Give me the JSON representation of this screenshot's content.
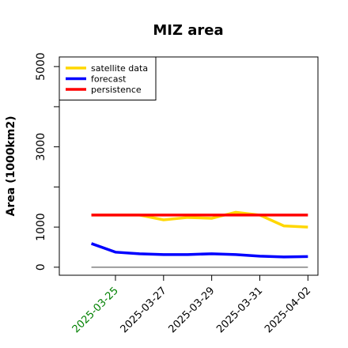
{
  "chart_data": {
    "type": "line",
    "title": "MIZ area",
    "ylabel": "Area (1000km2)",
    "x": [
      "2025-03-24",
      "2025-03-25",
      "2025-03-26",
      "2025-03-27",
      "2025-03-28",
      "2025-03-29",
      "2025-03-30",
      "2025-03-31",
      "2025-04-01",
      "2025-04-02"
    ],
    "series": [
      {
        "name": "satellite data",
        "color": "#ffd700",
        "values": [
          1300,
          1300,
          1300,
          1180,
          1240,
          1220,
          1370,
          1300,
          1030,
          1000
        ]
      },
      {
        "name": "forecast",
        "color": "#0000ff",
        "values": [
          590,
          375,
          335,
          315,
          315,
          335,
          315,
          275,
          255,
          265
        ]
      },
      {
        "name": "persistence",
        "color": "#ff0000",
        "values": [
          1300,
          1300,
          1300,
          1300,
          1300,
          1300,
          1300,
          1300,
          1300,
          1300
        ]
      },
      {
        "color": "#808080",
        "values": [
          0,
          0,
          0,
          0,
          0,
          0,
          0,
          0,
          0,
          0
        ]
      }
    ],
    "xlim": [
      "2025-03-22T16:00",
      "2025-04-02T10:00"
    ],
    "xticks": [
      "2025-03-25",
      "2025-03-27",
      "2025-03-29",
      "2025-03-31",
      "2025-04-02"
    ],
    "xtick_label_colors": [
      "green",
      "black",
      "black",
      "black",
      "black"
    ],
    "ylim": [
      -200,
      5240
    ],
    "yticks": [
      0,
      1000,
      3000,
      5000
    ],
    "yticks_minor": [
      2000,
      4000
    ],
    "legend": "top-left"
  }
}
